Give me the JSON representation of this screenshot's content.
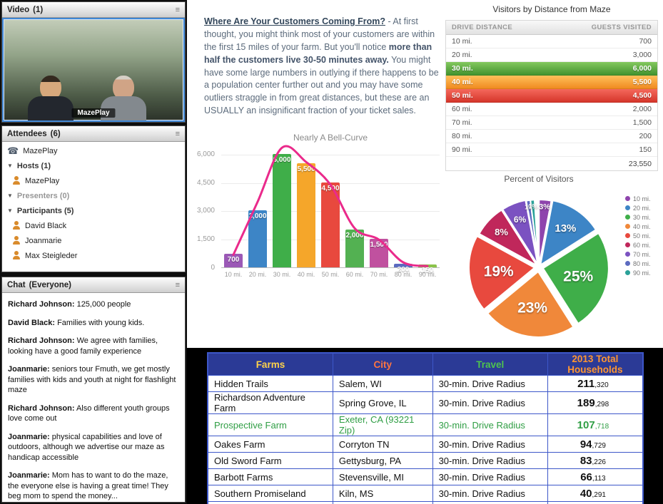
{
  "sidebar": {
    "video_pod": {
      "title": "Video",
      "count": "(1)",
      "video_label": "MazePlay"
    },
    "attendees_pod": {
      "title": "Attendees",
      "count": "(6)",
      "phone_user": "MazePlay",
      "groups": [
        {
          "label": "Hosts (1)",
          "members": [
            "MazePlay"
          ]
        },
        {
          "label": "Presenters (0)",
          "members": []
        },
        {
          "label": "Participants (5)",
          "members": [
            "David Black",
            "Joanmarie",
            "Max Steigleder"
          ]
        }
      ]
    },
    "chat_pod": {
      "title": "Chat",
      "scope": "(Everyone)",
      "messages": [
        {
          "author": "Richard Johnson",
          "text": "125,000 people"
        },
        {
          "author": "David Black",
          "text": "Families with young kids."
        },
        {
          "author": "Richard Johnson",
          "text": "We agree with families, looking have a good family experience"
        },
        {
          "author": "Joanmarie",
          "text": "seniors tour Fmuth, we get mostly families with kids and youth at night for flashlight maze"
        },
        {
          "author": "Richard Johnson",
          "text": "Also different youth groups love come out"
        },
        {
          "author": "Joanmarie",
          "text": "physical capabilities and love of outdoors, although we advertise our maze as handicap accessible"
        },
        {
          "author": "Joanmarie",
          "text": "Mom has to want to do the maze, the everyone else is having a great time!  They beg mom to spend the money..."
        }
      ]
    }
  },
  "share": {
    "intro": {
      "heading": "Where Are Your Customers Coming From?",
      "lead_in": " - ",
      "body_before_bold": "At first thought, you might think most of your customers are within the first 15 miles of your farm. But you'll notice ",
      "bold_text": "more than half the customers live 30-50 minutes away.",
      "body_after_bold": " You might have some large numbers in outlying if there happens to be a population center further out and you may have some outliers straggle in from great distances, but these are an USUALLY an insignificant fraction of your ticket sales."
    }
  },
  "chart_data": [
    {
      "type": "bar",
      "title": "Nearly A Bell-Curve",
      "categories": [
        "10 mi.",
        "20 mi.",
        "30 mi.",
        "40 mi.",
        "50 mi.",
        "60 mi.",
        "70 mi.",
        "80 mi.",
        "90 mi."
      ],
      "values": [
        700,
        3000,
        6000,
        5500,
        4500,
        2000,
        1500,
        200,
        150
      ],
      "value_labels": [
        "700",
        "3,000",
        "6,000",
        "5,500",
        "4,500",
        "2,000",
        "1,500",
        "200",
        "150"
      ],
      "bar_colors": [
        "#9b59b6",
        "#3d85c6",
        "#3fae49",
        "#f5a62a",
        "#e8493e",
        "#53b152",
        "#c0519f",
        "#5c6bc0",
        "#8bc34a"
      ],
      "yticks": [
        0,
        1500,
        3000,
        4500,
        6000
      ],
      "ytick_labels": [
        "0",
        "1,500",
        "3,000",
        "4,500",
        "6,000"
      ],
      "ylim": [
        0,
        6400
      ],
      "xlabel": "",
      "ylabel": "",
      "overlay": {
        "type": "line",
        "name": "bell-curve",
        "color": "#ea2a8b",
        "values": [
          700,
          3500,
          6350,
          5600,
          4400,
          2100,
          1500,
          300,
          100
        ]
      }
    },
    {
      "type": "table",
      "title": "Visitors by Distance from Maze",
      "columns": [
        "DRIVE DISTANCE",
        "GUESTS VISITED"
      ],
      "rows": [
        [
          "10 mi.",
          "700"
        ],
        [
          "20 mi.",
          "3,000"
        ],
        [
          "30 mi.",
          "6,000"
        ],
        [
          "40 mi.",
          "5,500"
        ],
        [
          "50 mi.",
          "4,500"
        ],
        [
          "60 mi.",
          "2,000"
        ],
        [
          "70 mi.",
          "1,500"
        ],
        [
          "80 mi.",
          "200"
        ],
        [
          "90 mi.",
          "150"
        ]
      ],
      "highlight_rows": {
        "2": "green",
        "3": "orange",
        "4": "red"
      },
      "total_row": [
        "",
        "23,550"
      ]
    },
    {
      "type": "pie",
      "title": "Percent of Visitors",
      "labels": [
        "10 mi.",
        "20 mi.",
        "30 mi.",
        "40 mi.",
        "50 mi.",
        "60 mi.",
        "70 mi.",
        "80 mi.",
        "90 mi."
      ],
      "values": [
        3,
        13,
        25,
        23,
        19,
        8,
        6,
        1,
        1
      ],
      "slice_labels": [
        "3%",
        "13%",
        "25%",
        "23%",
        "19%",
        "8%",
        "6%",
        "1%",
        "1%"
      ],
      "colors": [
        "#8e44ad",
        "#3d85c6",
        "#3fae49",
        "#f0883a",
        "#e8493e",
        "#c0275b",
        "#7b52c1",
        "#5c6bc0",
        "#2aa198"
      ],
      "legend_position": "right"
    },
    {
      "type": "table",
      "title": "",
      "columns": [
        "Farms",
        "City",
        "Travel",
        "2013 Total Households"
      ],
      "header_colors": [
        "#ffd24a",
        "#ff7540",
        "#4ec44e",
        "#ff9632"
      ],
      "rows": [
        [
          "Hidden Trails",
          "Salem, WI",
          "30-min. Drive Radius",
          "211,320"
        ],
        [
          "Richardson Adventure Farm",
          "Spring Grove, IL",
          "30-min. Drive Radius",
          "189,298"
        ],
        [
          "Prospective Farm",
          "Exeter, CA (93221 Zip)",
          "30-min. Drive Radius",
          "107,718"
        ],
        [
          "Oakes Farm",
          "Corryton TN",
          "30-min. Drive Radius",
          "94,729"
        ],
        [
          "Old Sword Farm",
          "Gettysburg, PA",
          "30-min. Drive Radius",
          "83,226"
        ],
        [
          "Barbott Farms",
          "Stevensville, MI",
          "30-min. Drive Radius",
          "66,113"
        ],
        [
          "Southern Promiseland",
          "Kiln, MS",
          "30-min. Drive Radius",
          "40,291"
        ]
      ],
      "highlight_row": 2
    }
  ]
}
